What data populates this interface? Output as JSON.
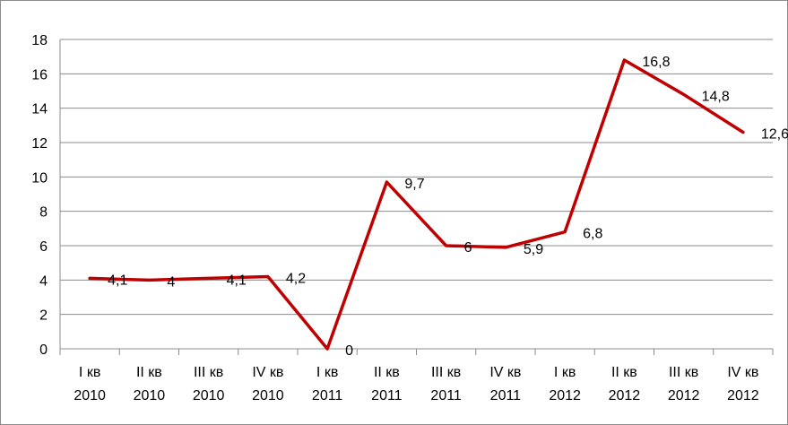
{
  "chart_data": {
    "type": "line",
    "categories": [
      [
        "I кв",
        "2010"
      ],
      [
        "II кв",
        "2010"
      ],
      [
        "III кв",
        "2010"
      ],
      [
        "IV кв",
        "2010"
      ],
      [
        "I кв",
        "2011"
      ],
      [
        "II кв",
        "2011"
      ],
      [
        "III кв",
        "2011"
      ],
      [
        "IV кв",
        "2011"
      ],
      [
        "I кв",
        "2012"
      ],
      [
        "II кв",
        "2012"
      ],
      [
        "III кв",
        "2012"
      ],
      [
        "IV кв",
        "2012"
      ]
    ],
    "series": [
      {
        "values": [
          4.1,
          4,
          4.1,
          4.2,
          0,
          9.7,
          6,
          5.9,
          6.8,
          16.8,
          14.8,
          12.6
        ],
        "labels": [
          "4,1",
          "4",
          "4,1",
          "4,2",
          "0",
          "9,7",
          "6",
          "5,9",
          "6,8",
          "16,8",
          "14,8",
          "12,6"
        ],
        "color": "#c00000"
      }
    ],
    "yticks": [
      "0",
      "2",
      "4",
      "6",
      "8",
      "10",
      "12",
      "14",
      "16",
      "18"
    ],
    "ylim": [
      0,
      18
    ],
    "grid": true,
    "legend": "none"
  }
}
